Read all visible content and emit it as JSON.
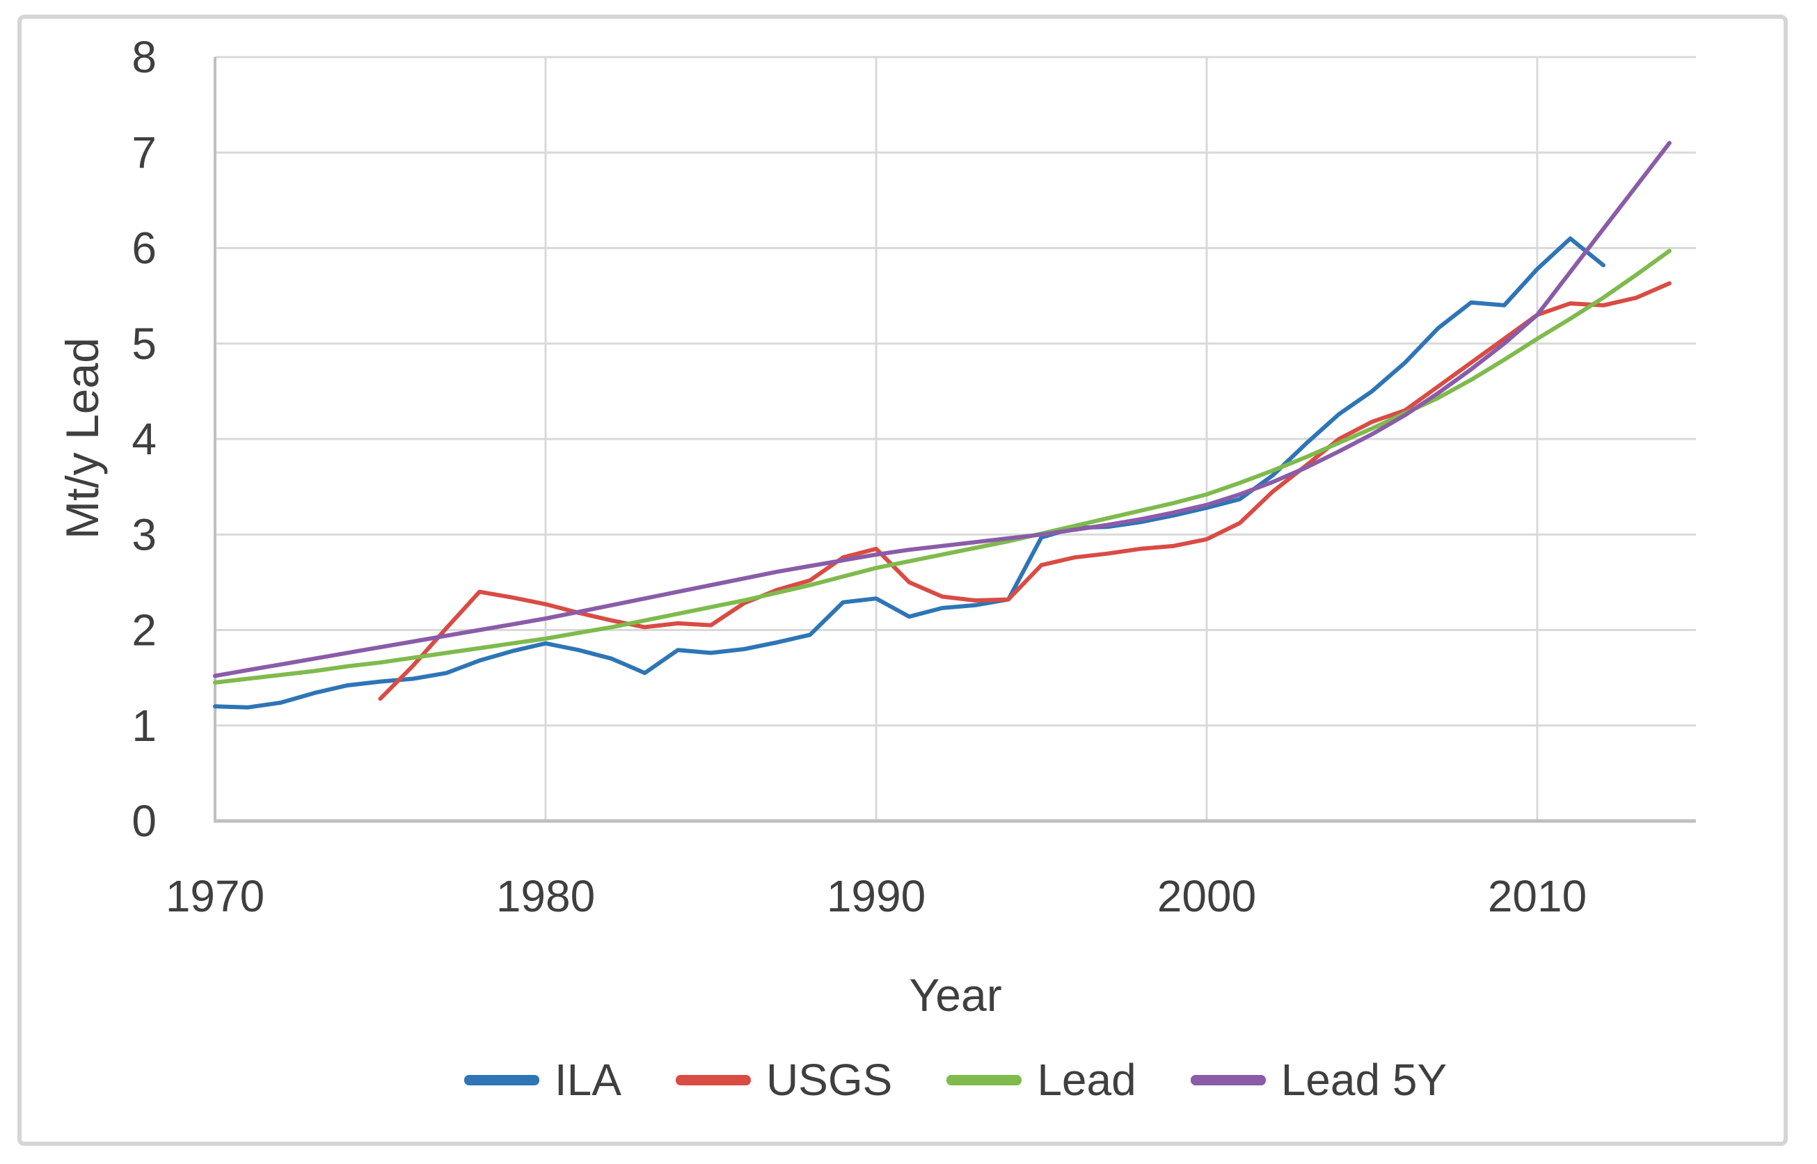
{
  "chart_data": {
    "type": "line",
    "title": "",
    "xlabel": "Year",
    "ylabel": "Mt/y Lead",
    "xlim": [
      1970,
      2014.8
    ],
    "ylim": [
      0,
      8
    ],
    "x_ticks": [
      1970,
      1980,
      1990,
      2000,
      2010
    ],
    "y_ticks": [
      0,
      1,
      2,
      3,
      4,
      5,
      6,
      7,
      8
    ],
    "grid": true,
    "legend_position": "bottom",
    "colors": {
      "grid": "#D9D9D9",
      "axis": "#BFBFBF",
      "tick_text": "#3F3F3F"
    },
    "series": [
      {
        "name": "ILA",
        "color": "#2E75B6",
        "points": [
          [
            1970,
            1.2
          ],
          [
            1971,
            1.19
          ],
          [
            1972,
            1.24
          ],
          [
            1973,
            1.34
          ],
          [
            1974,
            1.42
          ],
          [
            1975,
            1.46
          ],
          [
            1976,
            1.49
          ],
          [
            1977,
            1.55
          ],
          [
            1978,
            1.68
          ],
          [
            1979,
            1.78
          ],
          [
            1980,
            1.86
          ],
          [
            1981,
            1.79
          ],
          [
            1982,
            1.7
          ],
          [
            1983,
            1.55
          ],
          [
            1984,
            1.79
          ],
          [
            1985,
            1.76
          ],
          [
            1986,
            1.8
          ],
          [
            1987,
            1.87
          ],
          [
            1988,
            1.95
          ],
          [
            1989,
            2.29
          ],
          [
            1990,
            2.33
          ],
          [
            1991,
            2.14
          ],
          [
            1992,
            2.23
          ],
          [
            1993,
            2.26
          ],
          [
            1994,
            2.32
          ],
          [
            1995,
            2.97
          ],
          [
            1996,
            3.07
          ],
          [
            1997,
            3.08
          ],
          [
            1998,
            3.13
          ],
          [
            1999,
            3.2
          ],
          [
            2000,
            3.28
          ],
          [
            2001,
            3.37
          ],
          [
            2002,
            3.62
          ],
          [
            2003,
            3.95
          ],
          [
            2004,
            4.26
          ],
          [
            2005,
            4.5
          ],
          [
            2006,
            4.8
          ],
          [
            2007,
            5.16
          ],
          [
            2008,
            5.43
          ],
          [
            2009,
            5.4
          ],
          [
            2010,
            5.78
          ],
          [
            2011,
            6.1
          ],
          [
            2012,
            5.82
          ]
        ]
      },
      {
        "name": "USGS",
        "color": "#D84C44",
        "points": [
          [
            1975,
            1.28
          ],
          [
            1976,
            1.63
          ],
          [
            1977,
            2.02
          ],
          [
            1978,
            2.4
          ],
          [
            1979,
            2.34
          ],
          [
            1980,
            2.27
          ],
          [
            1981,
            2.18
          ],
          [
            1982,
            2.1
          ],
          [
            1983,
            2.03
          ],
          [
            1984,
            2.07
          ],
          [
            1985,
            2.05
          ],
          [
            1986,
            2.28
          ],
          [
            1987,
            2.42
          ],
          [
            1988,
            2.52
          ],
          [
            1989,
            2.76
          ],
          [
            1990,
            2.85
          ],
          [
            1991,
            2.5
          ],
          [
            1992,
            2.35
          ],
          [
            1993,
            2.31
          ],
          [
            1994,
            2.32
          ],
          [
            1995,
            2.68
          ],
          [
            1996,
            2.76
          ],
          [
            1997,
            2.8
          ],
          [
            1998,
            2.85
          ],
          [
            1999,
            2.88
          ],
          [
            2000,
            2.95
          ],
          [
            2001,
            3.12
          ],
          [
            2002,
            3.45
          ],
          [
            2003,
            3.72
          ],
          [
            2004,
            4.0
          ],
          [
            2005,
            4.18
          ],
          [
            2006,
            4.3
          ],
          [
            2007,
            4.55
          ],
          [
            2008,
            4.8
          ],
          [
            2009,
            5.05
          ],
          [
            2010,
            5.3
          ],
          [
            2011,
            5.42
          ],
          [
            2012,
            5.4
          ],
          [
            2013,
            5.48
          ],
          [
            2014,
            5.63
          ]
        ]
      },
      {
        "name": "Lead",
        "color": "#7FBA4D",
        "points": [
          [
            1970,
            1.45
          ],
          [
            1971,
            1.49
          ],
          [
            1972,
            1.53
          ],
          [
            1973,
            1.57
          ],
          [
            1974,
            1.62
          ],
          [
            1975,
            1.66
          ],
          [
            1976,
            1.71
          ],
          [
            1977,
            1.76
          ],
          [
            1978,
            1.81
          ],
          [
            1979,
            1.86
          ],
          [
            1980,
            1.91
          ],
          [
            1981,
            1.97
          ],
          [
            1982,
            2.03
          ],
          [
            1983,
            2.1
          ],
          [
            1984,
            2.17
          ],
          [
            1985,
            2.24
          ],
          [
            1986,
            2.31
          ],
          [
            1987,
            2.39
          ],
          [
            1988,
            2.47
          ],
          [
            1989,
            2.56
          ],
          [
            1990,
            2.65
          ],
          [
            1991,
            2.72
          ],
          [
            1992,
            2.79
          ],
          [
            1993,
            2.86
          ],
          [
            1994,
            2.93
          ],
          [
            1995,
            3.01
          ],
          [
            1996,
            3.09
          ],
          [
            1997,
            3.17
          ],
          [
            1998,
            3.25
          ],
          [
            1999,
            3.33
          ],
          [
            2000,
            3.42
          ],
          [
            2001,
            3.54
          ],
          [
            2002,
            3.67
          ],
          [
            2003,
            3.81
          ],
          [
            2004,
            3.96
          ],
          [
            2005,
            4.11
          ],
          [
            2006,
            4.27
          ],
          [
            2007,
            4.43
          ],
          [
            2008,
            4.62
          ],
          [
            2009,
            4.83
          ],
          [
            2010,
            5.05
          ],
          [
            2011,
            5.26
          ],
          [
            2012,
            5.48
          ],
          [
            2013,
            5.72
          ],
          [
            2014,
            5.97
          ]
        ]
      },
      {
        "name": "Lead 5Y",
        "color": "#8A5CA8",
        "points": [
          [
            1970,
            1.52
          ],
          [
            1971,
            1.58
          ],
          [
            1972,
            1.64
          ],
          [
            1973,
            1.7
          ],
          [
            1974,
            1.76
          ],
          [
            1975,
            1.82
          ],
          [
            1976,
            1.88
          ],
          [
            1977,
            1.94
          ],
          [
            1978,
            2.0
          ],
          [
            1979,
            2.06
          ],
          [
            1980,
            2.12
          ],
          [
            1981,
            2.19
          ],
          [
            1982,
            2.26
          ],
          [
            1983,
            2.33
          ],
          [
            1984,
            2.4
          ],
          [
            1985,
            2.47
          ],
          [
            1986,
            2.54
          ],
          [
            1987,
            2.61
          ],
          [
            1988,
            2.67
          ],
          [
            1989,
            2.73
          ],
          [
            1990,
            2.79
          ],
          [
            1991,
            2.84
          ],
          [
            1992,
            2.88
          ],
          [
            1993,
            2.92
          ],
          [
            1994,
            2.96
          ],
          [
            1995,
            3.0
          ],
          [
            1996,
            3.05
          ],
          [
            1997,
            3.1
          ],
          [
            1998,
            3.16
          ],
          [
            1999,
            3.23
          ],
          [
            2000,
            3.31
          ],
          [
            2001,
            3.42
          ],
          [
            2002,
            3.55
          ],
          [
            2003,
            3.7
          ],
          [
            2004,
            3.87
          ],
          [
            2005,
            4.05
          ],
          [
            2006,
            4.25
          ],
          [
            2007,
            4.48
          ],
          [
            2008,
            4.73
          ],
          [
            2009,
            5.0
          ],
          [
            2010,
            5.3
          ],
          [
            2011,
            5.75
          ],
          [
            2012,
            6.2
          ],
          [
            2013,
            6.65
          ],
          [
            2014,
            7.1
          ]
        ]
      }
    ]
  }
}
